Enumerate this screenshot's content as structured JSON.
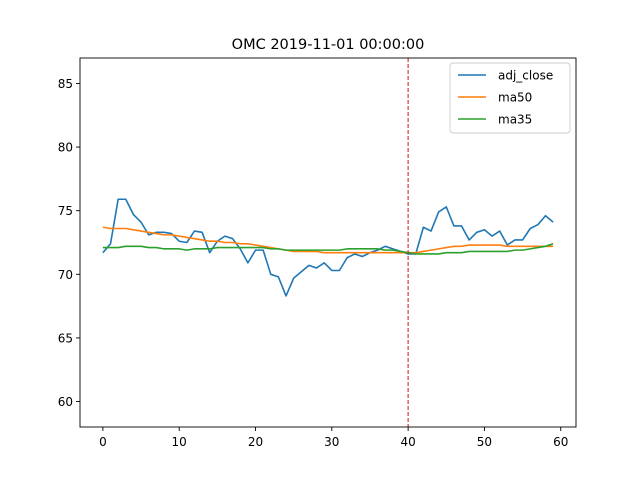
{
  "chart_data": {
    "type": "line",
    "title": "OMC 2019-11-01 00:00:00",
    "xlabel": "",
    "ylabel": "",
    "xlim": [
      -3,
      62
    ],
    "ylim": [
      58,
      87
    ],
    "x_ticks": [
      "0",
      "10",
      "20",
      "30",
      "40",
      "50",
      "60"
    ],
    "y_ticks": [
      "60",
      "65",
      "70",
      "75",
      "80",
      "85"
    ],
    "legend_position": "top-right",
    "grid": false,
    "vline": {
      "x": 40,
      "color": "#d62728",
      "style": "dashed"
    },
    "series": [
      {
        "name": "adj_close",
        "color": "#1f77b4",
        "values": [
          71.7,
          72.4,
          75.9,
          75.9,
          74.7,
          74.1,
          73.1,
          73.3,
          73.3,
          73.2,
          72.6,
          72.5,
          73.4,
          73.3,
          71.7,
          72.6,
          73.0,
          72.8,
          72.0,
          70.9,
          71.9,
          71.9,
          70.0,
          69.8,
          68.3,
          69.7,
          70.2,
          70.7,
          70.5,
          70.9,
          70.3,
          70.3,
          71.3,
          71.6,
          71.4,
          71.7,
          71.9,
          72.2,
          72.0,
          71.8,
          71.6,
          71.6,
          73.7,
          73.4,
          74.9,
          75.3,
          73.8,
          73.8,
          72.7,
          73.3,
          73.5,
          73.0,
          73.4,
          72.3,
          72.7,
          72.7,
          73.6,
          73.9,
          74.6,
          74.1
        ]
      },
      {
        "name": "ma50",
        "color": "#ff7f0e",
        "values": [
          73.7,
          73.6,
          73.6,
          73.6,
          73.5,
          73.4,
          73.3,
          73.2,
          73.1,
          73.1,
          73.0,
          72.9,
          72.8,
          72.7,
          72.6,
          72.6,
          72.5,
          72.5,
          72.4,
          72.4,
          72.3,
          72.2,
          72.1,
          72.0,
          71.9,
          71.8,
          71.8,
          71.8,
          71.8,
          71.7,
          71.7,
          71.7,
          71.7,
          71.7,
          71.7,
          71.7,
          71.7,
          71.7,
          71.7,
          71.7,
          71.7,
          71.7,
          71.8,
          71.9,
          72.0,
          72.1,
          72.2,
          72.2,
          72.3,
          72.3,
          72.3,
          72.3,
          72.3,
          72.2,
          72.2,
          72.2,
          72.2,
          72.2,
          72.2,
          72.2
        ]
      },
      {
        "name": "ma35",
        "color": "#2ca02c",
        "values": [
          72.1,
          72.1,
          72.1,
          72.2,
          72.2,
          72.2,
          72.1,
          72.1,
          72.0,
          72.0,
          72.0,
          71.9,
          72.0,
          72.0,
          72.0,
          72.1,
          72.1,
          72.1,
          72.1,
          72.1,
          72.1,
          72.1,
          72.0,
          72.0,
          71.9,
          71.9,
          71.9,
          71.9,
          71.9,
          71.9,
          71.9,
          71.9,
          72.0,
          72.0,
          72.0,
          72.0,
          72.0,
          71.9,
          71.9,
          71.8,
          71.7,
          71.6,
          71.6,
          71.6,
          71.6,
          71.7,
          71.7,
          71.7,
          71.8,
          71.8,
          71.8,
          71.8,
          71.8,
          71.8,
          71.9,
          71.9,
          72.0,
          72.1,
          72.2,
          72.4
        ]
      }
    ]
  }
}
